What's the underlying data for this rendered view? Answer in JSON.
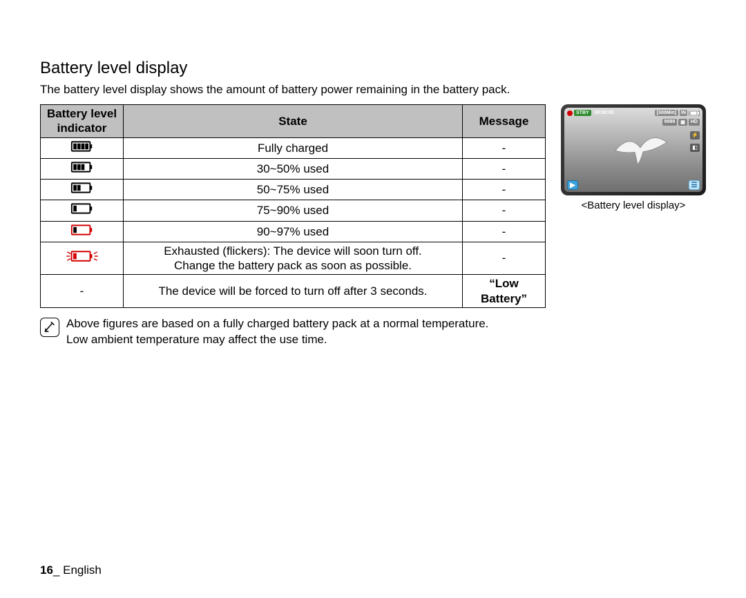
{
  "title": "Battery level display",
  "intro": "The battery level display shows the amount of battery power remaining in the battery pack.",
  "table": {
    "headers": {
      "indicator": "Battery level indicator",
      "state": "State",
      "message": "Message"
    },
    "rows": [
      {
        "icon": {
          "bars": 4,
          "outline": "#000000",
          "fill": "#000000",
          "flicker": false
        },
        "state": "Fully charged",
        "message": "-"
      },
      {
        "icon": {
          "bars": 3,
          "outline": "#000000",
          "fill": "#000000",
          "flicker": false
        },
        "state": "30~50% used",
        "message": "-"
      },
      {
        "icon": {
          "bars": 2,
          "outline": "#000000",
          "fill": "#000000",
          "flicker": false
        },
        "state": "50~75% used",
        "message": "-"
      },
      {
        "icon": {
          "bars": 1,
          "outline": "#000000",
          "fill": "#000000",
          "flicker": false
        },
        "state": "75~90% used",
        "message": "-"
      },
      {
        "icon": {
          "bars": 1,
          "outline": "#d20000",
          "fill": "#000000",
          "flicker": false
        },
        "state": "90~97% used",
        "message": "-"
      },
      {
        "icon": {
          "bars": 1,
          "outline": "#d20000",
          "fill": "#d20000",
          "flicker": true
        },
        "state": "Exhausted (flickers): The device will soon turn off.\nChange the battery pack as soon as possible.",
        "message": "-"
      },
      {
        "icon": null,
        "indicator_text": "-",
        "state": "The device will be forced to turn off after 3 seconds.",
        "message": "“Low Battery”",
        "message_bold": true
      }
    ]
  },
  "side": {
    "caption": "<Battery level display>",
    "osd": {
      "rec_dot_color": "#d20000",
      "stby": "STBY",
      "time": "00:00:00",
      "remain": "[300Min]",
      "shots": "9999",
      "hd": "HD",
      "play_char": "▶",
      "menu_char": "☰"
    }
  },
  "note": {
    "line1": "Above figures are based on a fully charged battery pack at a normal temperature.",
    "line2": "Low ambient temperature may affect the use time."
  },
  "footer": {
    "page": "16",
    "sep": "_ ",
    "lang": "English"
  }
}
